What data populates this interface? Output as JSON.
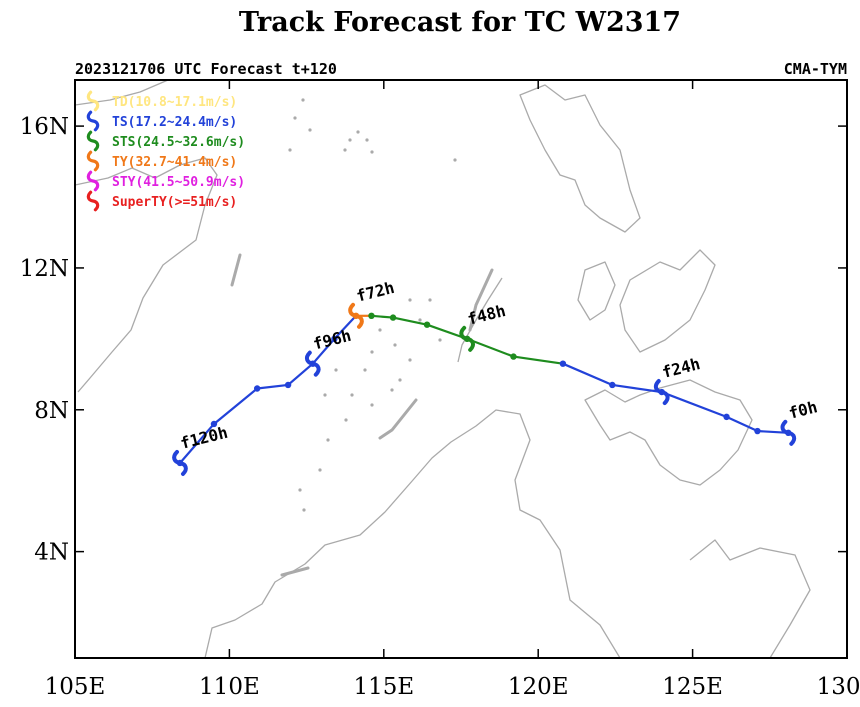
{
  "chart_data": {
    "type": "line",
    "title": "Track Forecast for TC W2317",
    "subtitle_left": "2023121706 UTC Forecast t+120",
    "subtitle_right": "CMA-TYM",
    "xlim": [
      105,
      130
    ],
    "ylim": [
      1,
      17.3
    ],
    "x_ticks": [
      105,
      110,
      115,
      120,
      125,
      130
    ],
    "x_tick_labels": [
      "105E",
      "110E",
      "115E",
      "120E",
      "125E",
      "130E"
    ],
    "y_ticks": [
      4,
      8,
      12,
      16
    ],
    "y_tick_labels": [
      "4N",
      "8N",
      "12N",
      "16N"
    ],
    "legend_position": "top-left",
    "legend": [
      {
        "label": "TD(10.8~17.1m/s)",
        "color": "#ffe680"
      },
      {
        "label": "TS(17.2~24.4m/s)",
        "color": "#2242d9"
      },
      {
        "label": "STS(24.5~32.6m/s)",
        "color": "#1e8c1e"
      },
      {
        "label": "TY(32.7~41.4m/s)",
        "color": "#f07818"
      },
      {
        "label": "STY(41.5~50.9m/s)",
        "color": "#e020e0"
      },
      {
        "label": "SuperTY(>=51m/s)",
        "color": "#e82020"
      }
    ],
    "track": [
      {
        "lon": 128.1,
        "lat": 7.35,
        "cat": "TS"
      },
      {
        "lon": 127.1,
        "lat": 7.4,
        "cat": "TS"
      },
      {
        "lon": 126.1,
        "lat": 7.8,
        "cat": "TS"
      },
      {
        "lon": 124.0,
        "lat": 8.5,
        "cat": "TS"
      },
      {
        "lon": 122.4,
        "lat": 8.7,
        "cat": "TS"
      },
      {
        "lon": 120.8,
        "lat": 9.3,
        "cat": "TS"
      },
      {
        "lon": 119.2,
        "lat": 9.5,
        "cat": "STS"
      },
      {
        "lon": 117.7,
        "lat": 10.0,
        "cat": "STS"
      },
      {
        "lon": 116.4,
        "lat": 10.4,
        "cat": "STS"
      },
      {
        "lon": 115.3,
        "lat": 10.6,
        "cat": "STS"
      },
      {
        "lon": 114.6,
        "lat": 10.65,
        "cat": "STS"
      },
      {
        "lon": 114.1,
        "lat": 10.65,
        "cat": "TY"
      },
      {
        "lon": 113.4,
        "lat": 10.0,
        "cat": "TS"
      },
      {
        "lon": 112.7,
        "lat": 9.3,
        "cat": "TS"
      },
      {
        "lon": 111.9,
        "lat": 8.7,
        "cat": "TS"
      },
      {
        "lon": 110.9,
        "lat": 8.6,
        "cat": "TS"
      },
      {
        "lon": 109.5,
        "lat": 7.6,
        "cat": "TS"
      },
      {
        "lon": 108.4,
        "lat": 6.5,
        "cat": "TS"
      }
    ],
    "forecast_labels": [
      {
        "text": "f0h",
        "lon": 128.1,
        "lat": 7.35,
        "cat": "TS"
      },
      {
        "text": "f24h",
        "lon": 124.0,
        "lat": 8.5,
        "cat": "TS"
      },
      {
        "text": "f48h",
        "lon": 117.7,
        "lat": 10.0,
        "cat": "STS"
      },
      {
        "text": "f72h",
        "lon": 114.1,
        "lat": 10.65,
        "cat": "TY"
      },
      {
        "text": "f96h",
        "lon": 112.7,
        "lat": 9.3,
        "cat": "TS"
      },
      {
        "text": "f120h",
        "lon": 108.4,
        "lat": 6.5,
        "cat": "TS"
      }
    ],
    "category_colors": {
      "TD": "#ffe680",
      "TS": "#2242d9",
      "STS": "#1e8c1e",
      "TY": "#f07818",
      "STY": "#e020e0",
      "SuperTY": "#e82020"
    }
  }
}
